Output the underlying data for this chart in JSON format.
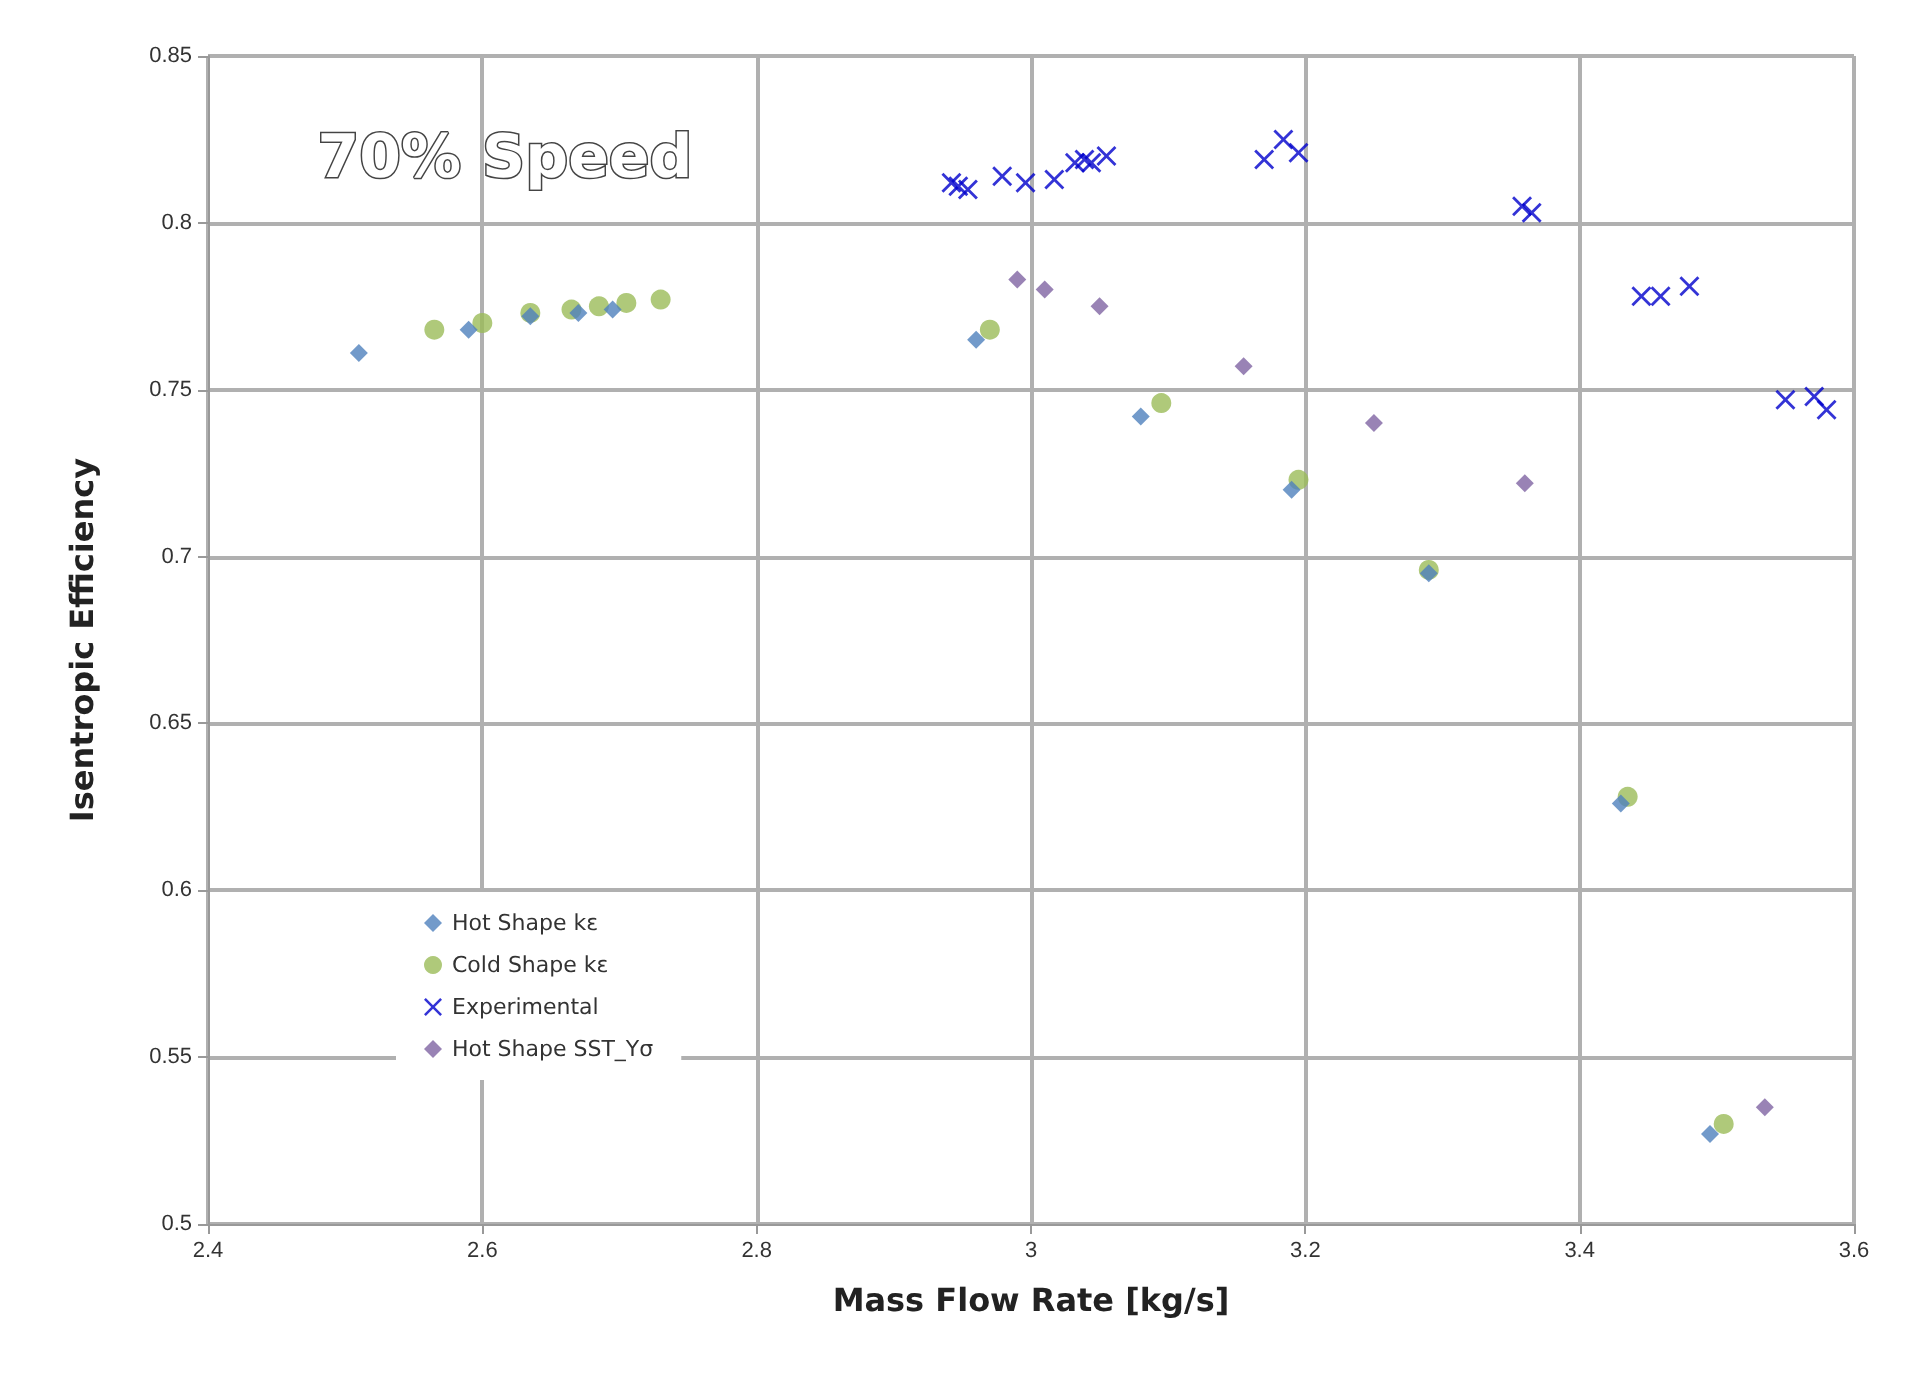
{
  "chart_data": {
    "type": "scatter",
    "xlabel": "Mass Flow Rate [kg/s]",
    "ylabel": "Isentropic Efficiency",
    "annotations": [
      "70% Speed"
    ],
    "xlim": [
      2.4,
      3.6
    ],
    "xticks": [
      2.4,
      2.6,
      2.8,
      3,
      3.2,
      3.4,
      3.6
    ],
    "ylim": [
      0.5,
      0.85
    ],
    "yticks": [
      0.5,
      0.55,
      0.6,
      0.65,
      0.7,
      0.75,
      0.8,
      0.85
    ],
    "grid": true,
    "legend": "bottom left",
    "series": [
      {
        "name": "Hot Shape kε",
        "color": "#4f81bd",
        "marker": "diamond",
        "x": [
          2.51,
          2.59,
          2.635,
          2.67,
          2.695,
          2.96,
          3.08,
          3.19,
          3.29,
          3.43,
          3.495
        ],
        "values": [
          0.761,
          0.768,
          0.772,
          0.773,
          0.774,
          0.765,
          0.742,
          0.72,
          0.695,
          0.626,
          0.527
        ]
      },
      {
        "name": "Cold Shape kε",
        "color": "#9bbb59",
        "marker": "circle",
        "x": [
          2.565,
          2.6,
          2.635,
          2.665,
          2.685,
          2.705,
          2.73,
          2.97,
          3.095,
          3.195,
          3.29,
          3.435,
          3.505
        ],
        "values": [
          0.768,
          0.77,
          0.773,
          0.774,
          0.775,
          0.776,
          0.777,
          0.768,
          0.746,
          0.723,
          0.696,
          0.628,
          0.53
        ]
      },
      {
        "name": "Experimental",
        "color": "#0000cc",
        "marker": "cross",
        "x": [
          2.942,
          2.947,
          2.954,
          2.979,
          2.996,
          3.017,
          3.032,
          3.039,
          3.044,
          3.055,
          3.17,
          3.184,
          3.195,
          3.358,
          3.365,
          3.445,
          3.459,
          3.48,
          3.55,
          3.571,
          3.58
        ],
        "values": [
          0.812,
          0.811,
          0.81,
          0.814,
          0.812,
          0.813,
          0.818,
          0.819,
          0.818,
          0.82,
          0.819,
          0.825,
          0.821,
          0.805,
          0.803,
          0.778,
          0.778,
          0.781,
          0.747,
          0.748,
          0.744
        ]
      },
      {
        "name": "Hot Shape SST_Yσ",
        "color": "#8064a2",
        "marker": "diamond",
        "x": [
          2.99,
          3.01,
          3.05,
          3.155,
          3.25,
          3.36,
          3.535
        ],
        "values": [
          0.783,
          0.78,
          0.775,
          0.757,
          0.74,
          0.722,
          0.535
        ]
      }
    ]
  }
}
